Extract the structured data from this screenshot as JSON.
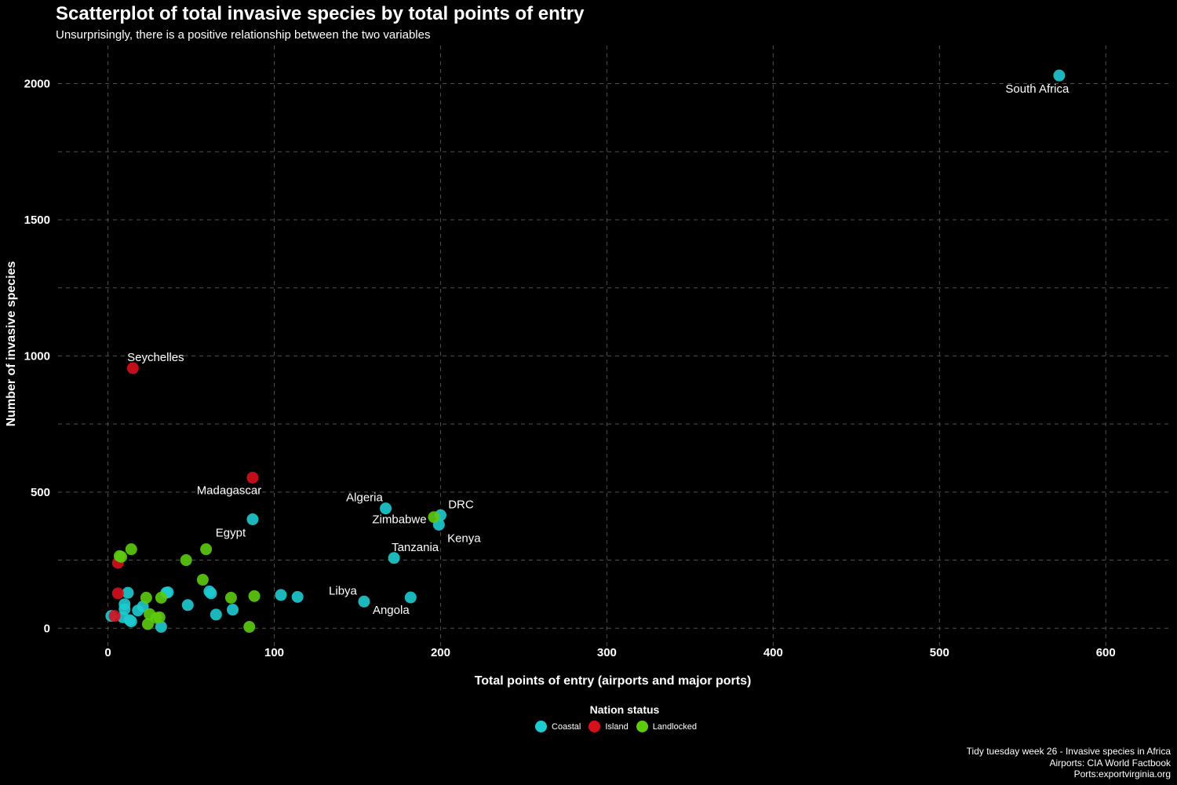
{
  "chart_data": {
    "type": "scatter",
    "title": "Scatterplot of total invasive species by total points of entry",
    "subtitle": "Unsurprisingly, there is a positive relationship between the two variables",
    "xlabel": "Total points of entry (airports and major ports)",
    "ylabel": "Number of invasive species",
    "xlim": [
      -30,
      640
    ],
    "ylim": [
      -80,
      2140
    ],
    "x_ticks": [
      0,
      100,
      200,
      300,
      400,
      500,
      600
    ],
    "y_ticks": [
      0,
      500,
      1000,
      1500,
      2000
    ],
    "grid": true,
    "legend": {
      "title": "Nation status",
      "position": "bottom",
      "entries": [
        {
          "name": "Coastal",
          "color": "#1ecbd0"
        },
        {
          "name": "Island",
          "color": "#d7101e"
        },
        {
          "name": "Landlocked",
          "color": "#5ccb0e"
        }
      ]
    },
    "series": [
      {
        "name": "Coastal",
        "color": "#1ecbd0",
        "points": [
          {
            "x": 572,
            "y": 2030,
            "label": "South Africa"
          },
          {
            "x": 87,
            "y": 400,
            "label": "Egypt"
          },
          {
            "x": 167,
            "y": 440,
            "label": "Algeria"
          },
          {
            "x": 200,
            "y": 415,
            "label": "DRC"
          },
          {
            "x": 199,
            "y": 380,
            "label": "Kenya"
          },
          {
            "x": 172,
            "y": 258,
            "label": "Tanzania"
          },
          {
            "x": 154,
            "y": 98,
            "label": "Libya"
          },
          {
            "x": 182,
            "y": 113,
            "label": "Angola"
          },
          {
            "x": 2,
            "y": 45
          },
          {
            "x": 9,
            "y": 40
          },
          {
            "x": 10,
            "y": 70
          },
          {
            "x": 10,
            "y": 88
          },
          {
            "x": 12,
            "y": 130
          },
          {
            "x": 13,
            "y": 30
          },
          {
            "x": 14,
            "y": 25
          },
          {
            "x": 18,
            "y": 65
          },
          {
            "x": 21,
            "y": 80
          },
          {
            "x": 32,
            "y": 5
          },
          {
            "x": 35,
            "y": 130
          },
          {
            "x": 36,
            "y": 132
          },
          {
            "x": 48,
            "y": 85
          },
          {
            "x": 61,
            "y": 135
          },
          {
            "x": 62,
            "y": 128
          },
          {
            "x": 65,
            "y": 50
          },
          {
            "x": 75,
            "y": 68
          },
          {
            "x": 104,
            "y": 122
          },
          {
            "x": 114,
            "y": 115
          }
        ]
      },
      {
        "name": "Island",
        "color": "#d7101e",
        "points": [
          {
            "x": 15,
            "y": 955,
            "label": "Seychelles"
          },
          {
            "x": 87,
            "y": 553,
            "label": "Madagascar"
          },
          {
            "x": 6,
            "y": 240
          },
          {
            "x": 6,
            "y": 128
          },
          {
            "x": 4,
            "y": 45
          }
        ]
      },
      {
        "name": "Landlocked",
        "color": "#5ccb0e",
        "points": [
          {
            "x": 196,
            "y": 408,
            "label": "Zimbabwe"
          },
          {
            "x": 7,
            "y": 265
          },
          {
            "x": 8,
            "y": 262
          },
          {
            "x": 14,
            "y": 290
          },
          {
            "x": 47,
            "y": 250
          },
          {
            "x": 59,
            "y": 290
          },
          {
            "x": 57,
            "y": 178
          },
          {
            "x": 23,
            "y": 112
          },
          {
            "x": 32,
            "y": 112
          },
          {
            "x": 25,
            "y": 52
          },
          {
            "x": 24,
            "y": 15
          },
          {
            "x": 29,
            "y": 38
          },
          {
            "x": 31,
            "y": 40
          },
          {
            "x": 74,
            "y": 112
          },
          {
            "x": 88,
            "y": 118
          },
          {
            "x": 85,
            "y": 5
          }
        ]
      }
    ]
  },
  "caption": {
    "line1": "Tidy tuesday week 26 - Invasive species in Africa",
    "line2": "Airports: CIA World Factbook",
    "line3": "Ports:exportvirginia.org"
  }
}
